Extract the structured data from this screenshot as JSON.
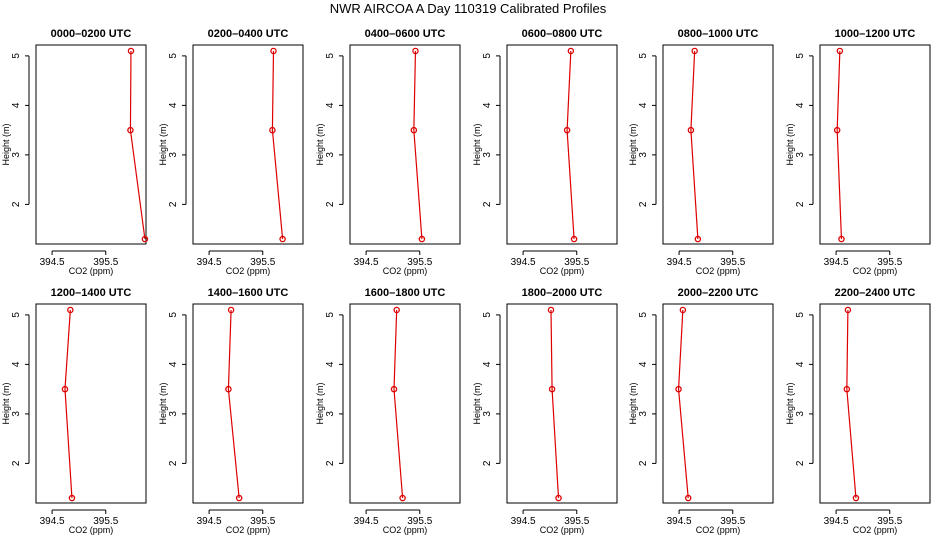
{
  "figure": {
    "title": "NWR AIRCOA A  Day 110319  Calibrated Profiles"
  },
  "chart_data": [
    {
      "type": "line",
      "title": "0000–0200 UTC",
      "xlabel": "CO2 (ppm)",
      "ylabel": "Height (m)",
      "xticks": [
        "394.5",
        "395.5"
      ],
      "yticks": [
        "2",
        "3",
        "4",
        "5"
      ],
      "xlim": [
        394.2,
        396.25
      ],
      "ylim": [
        1.2,
        5.22
      ],
      "grid": false,
      "color": "#dd0000",
      "series": [
        {
          "x": [
            395.97,
            395.96,
            396.23
          ],
          "y": [
            5.1,
            3.5,
            1.3
          ]
        }
      ]
    },
    {
      "type": "line",
      "title": "0200–0400 UTC",
      "xlabel": "CO2 (ppm)",
      "ylabel": "Height (m)",
      "xticks": [
        "394.5",
        "395.5"
      ],
      "yticks": [
        "2",
        "3",
        "4",
        "5"
      ],
      "xlim": [
        394.2,
        396.25
      ],
      "ylim": [
        1.2,
        5.22
      ],
      "grid": false,
      "color": "#dd0000",
      "series": [
        {
          "x": [
            395.7,
            395.68,
            395.87
          ],
          "y": [
            5.1,
            3.5,
            1.3
          ]
        }
      ]
    },
    {
      "type": "line",
      "title": "0400–0600 UTC",
      "xlabel": "CO2 (ppm)",
      "ylabel": "Height (m)",
      "xticks": [
        "394.5",
        "395.5"
      ],
      "yticks": [
        "2",
        "3",
        "4",
        "5"
      ],
      "xlim": [
        394.2,
        396.25
      ],
      "ylim": [
        1.2,
        5.22
      ],
      "grid": false,
      "color": "#dd0000",
      "series": [
        {
          "x": [
            395.42,
            395.39,
            395.54
          ],
          "y": [
            5.1,
            3.5,
            1.3
          ]
        }
      ]
    },
    {
      "type": "line",
      "title": "0600–0800 UTC",
      "xlabel": "CO2 (ppm)",
      "ylabel": "Height (m)",
      "xticks": [
        "394.5",
        "395.5"
      ],
      "yticks": [
        "2",
        "3",
        "4",
        "5"
      ],
      "xlim": [
        394.2,
        396.25
      ],
      "ylim": [
        1.2,
        5.22
      ],
      "grid": false,
      "color": "#dd0000",
      "series": [
        {
          "x": [
            395.39,
            395.32,
            395.45
          ],
          "y": [
            5.1,
            3.5,
            1.3
          ]
        }
      ]
    },
    {
      "type": "line",
      "title": "0800–1000 UTC",
      "xlabel": "CO2 (ppm)",
      "ylabel": "Height (m)",
      "xticks": [
        "394.5",
        "395.5"
      ],
      "yticks": [
        "2",
        "3",
        "4",
        "5"
      ],
      "xlim": [
        394.2,
        396.25
      ],
      "ylim": [
        1.2,
        5.22
      ],
      "grid": false,
      "color": "#dd0000",
      "series": [
        {
          "x": [
            394.79,
            394.72,
            394.85
          ],
          "y": [
            5.1,
            3.5,
            1.3
          ]
        }
      ]
    },
    {
      "type": "line",
      "title": "1000–1200 UTC",
      "xlabel": "CO2 (ppm)",
      "ylabel": "Height (m)",
      "xticks": [
        "394.5",
        "395.5"
      ],
      "yticks": [
        "2",
        "3",
        "4",
        "5"
      ],
      "xlim": [
        394.2,
        396.25
      ],
      "ylim": [
        1.2,
        5.22
      ],
      "grid": false,
      "color": "#dd0000",
      "series": [
        {
          "x": [
            394.57,
            394.52,
            394.6
          ],
          "y": [
            5.1,
            3.5,
            1.3
          ]
        }
      ]
    },
    {
      "type": "line",
      "title": "1200–1400 UTC",
      "xlabel": "CO2 (ppm)",
      "ylabel": "Height (m)",
      "xticks": [
        "394.5",
        "395.5"
      ],
      "yticks": [
        "2",
        "3",
        "4",
        "5"
      ],
      "xlim": [
        394.2,
        396.25
      ],
      "ylim": [
        1.2,
        5.22
      ],
      "grid": false,
      "color": "#dd0000",
      "series": [
        {
          "x": [
            394.84,
            394.74,
            394.87
          ],
          "y": [
            5.1,
            3.5,
            1.3
          ]
        }
      ]
    },
    {
      "type": "line",
      "title": "1400–1600 UTC",
      "xlabel": "CO2 (ppm)",
      "ylabel": "Height (m)",
      "xticks": [
        "394.5",
        "395.5"
      ],
      "yticks": [
        "2",
        "3",
        "4",
        "5"
      ],
      "xlim": [
        394.2,
        396.25
      ],
      "ylim": [
        1.2,
        5.22
      ],
      "grid": false,
      "color": "#dd0000",
      "series": [
        {
          "x": [
            394.91,
            394.86,
            395.06
          ],
          "y": [
            5.1,
            3.5,
            1.3
          ]
        }
      ]
    },
    {
      "type": "line",
      "title": "1600–1800 UTC",
      "xlabel": "CO2 (ppm)",
      "ylabel": "Height (m)",
      "xticks": [
        "394.5",
        "395.5"
      ],
      "yticks": [
        "2",
        "3",
        "4",
        "5"
      ],
      "xlim": [
        394.2,
        396.25
      ],
      "ylim": [
        1.2,
        5.22
      ],
      "grid": false,
      "color": "#dd0000",
      "series": [
        {
          "x": [
            395.07,
            395.02,
            395.18
          ],
          "y": [
            5.1,
            3.5,
            1.3
          ]
        }
      ]
    },
    {
      "type": "line",
      "title": "1800–2000 UTC",
      "xlabel": "CO2 (ppm)",
      "ylabel": "Height (m)",
      "xticks": [
        "394.5",
        "395.5"
      ],
      "yticks": [
        "2",
        "3",
        "4",
        "5"
      ],
      "xlim": [
        394.2,
        396.25
      ],
      "ylim": [
        1.2,
        5.22
      ],
      "grid": false,
      "color": "#dd0000",
      "series": [
        {
          "x": [
            395.02,
            395.04,
            395.16
          ],
          "y": [
            5.1,
            3.5,
            1.3
          ]
        }
      ]
    },
    {
      "type": "line",
      "title": "2000–2200 UTC",
      "xlabel": "CO2 (ppm)",
      "ylabel": "Height (m)",
      "xticks": [
        "394.5",
        "395.5"
      ],
      "yticks": [
        "2",
        "3",
        "4",
        "5"
      ],
      "xlim": [
        394.2,
        396.25
      ],
      "ylim": [
        1.2,
        5.22
      ],
      "grid": false,
      "color": "#dd0000",
      "series": [
        {
          "x": [
            394.57,
            394.49,
            394.67
          ],
          "y": [
            5.1,
            3.5,
            1.3
          ]
        }
      ]
    },
    {
      "type": "line",
      "title": "2200–2400 UTC",
      "xlabel": "CO2 (ppm)",
      "ylabel": "Height (m)",
      "xticks": [
        "394.5",
        "395.5"
      ],
      "yticks": [
        "2",
        "3",
        "4",
        "5"
      ],
      "xlim": [
        394.2,
        396.25
      ],
      "ylim": [
        1.2,
        5.22
      ],
      "grid": false,
      "color": "#dd0000",
      "series": [
        {
          "x": [
            394.72,
            394.7,
            394.87
          ],
          "y": [
            5.1,
            3.5,
            1.3
          ]
        }
      ]
    }
  ]
}
